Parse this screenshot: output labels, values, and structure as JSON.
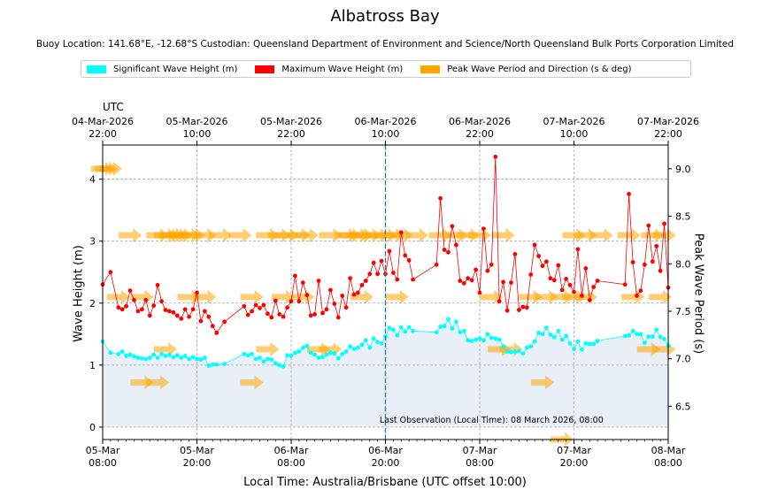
{
  "chart_data": {
    "type": "line",
    "title": "Albatross Bay",
    "subtitle": "Buoy Location: 141.68°E, -12.68°S     Custodian: Queensland Department of Environment and Science/North Queensland Bulk Ports Corporation Limited",
    "xlabel": "Local Time: Australia/Brisbane (UTC offset 10:00)",
    "ylabel_left": "Wave Height (m)",
    "ylabel_right": "Peak Wave Period (s)",
    "utc_axis_title": "UTC",
    "x_range_hours": [
      0,
      72
    ],
    "ylim_left": [
      -0.2,
      4.55
    ],
    "ylim_right": [
      6.15,
      9.25
    ],
    "left_ticks": [
      0,
      1,
      2,
      3,
      4
    ],
    "right_ticks": [
      "6.5",
      "7.0",
      "7.5",
      "8.0",
      "8.5",
      "9.0"
    ],
    "grid": true,
    "legend": [
      "Significant Wave Height (m)",
      "Maximum Wave Height (m)",
      "Peak Wave Period and Direction (s & deg)"
    ],
    "colors": {
      "hsig": "#00ffff",
      "hmax": "#ff0000",
      "period": "#ffa500",
      "fill": "#e8eff7",
      "now": "#1f77b4"
    },
    "bottom_ticks": [
      {
        "h": 0,
        "date": "05-Mar",
        "time": "08:00"
      },
      {
        "h": 12,
        "date": "05-Mar",
        "time": "20:00"
      },
      {
        "h": 24,
        "date": "06-Mar",
        "time": "08:00"
      },
      {
        "h": 36,
        "date": "06-Mar",
        "time": "20:00"
      },
      {
        "h": 48,
        "date": "07-Mar",
        "time": "08:00"
      },
      {
        "h": 60,
        "date": "07-Mar",
        "time": "20:00"
      },
      {
        "h": 72,
        "date": "08-Mar",
        "time": "08:00"
      }
    ],
    "top_ticks": [
      {
        "h": 0,
        "date": "04-Mar-2026",
        "time": "22:00"
      },
      {
        "h": 12,
        "date": "05-Mar-2026",
        "time": "10:00"
      },
      {
        "h": 24,
        "date": "05-Mar-2026",
        "time": "22:00"
      },
      {
        "h": 36,
        "date": "06-Mar-2026",
        "time": "10:00"
      },
      {
        "h": 48,
        "date": "06-Mar-2026",
        "time": "22:00"
      },
      {
        "h": 60,
        "date": "07-Mar-2026",
        "time": "10:00"
      },
      {
        "h": 72,
        "date": "07-Mar-2026",
        "time": "22:00"
      }
    ],
    "now_line_hour": 36,
    "annotation": "Last Observation (Local Time): 08 March 2026, 08:00",
    "hsig": [
      [
        0,
        1.38
      ],
      [
        1,
        1.2
      ],
      [
        2,
        1.18
      ],
      [
        2.5,
        1.22
      ],
      [
        3,
        1.15
      ],
      [
        3.5,
        1.17
      ],
      [
        4,
        1.14
      ],
      [
        4.5,
        1.12
      ],
      [
        5,
        1.11
      ],
      [
        5.5,
        1.1
      ],
      [
        6,
        1.12
      ],
      [
        6.5,
        1.17
      ],
      [
        7,
        1.12
      ],
      [
        7.5,
        1.18
      ],
      [
        8,
        1.15
      ],
      [
        8.5,
        1.17
      ],
      [
        9,
        1.13
      ],
      [
        9.5,
        1.16
      ],
      [
        10,
        1.12
      ],
      [
        10.5,
        1.15
      ],
      [
        11,
        1.1
      ],
      [
        11.5,
        1.13
      ],
      [
        12,
        1.1
      ],
      [
        12.5,
        1.09
      ],
      [
        13,
        1.12
      ],
      [
        13.5,
        0.99
      ],
      [
        14,
        1.01
      ],
      [
        14.5,
        1.01
      ],
      [
        15.5,
        1.02
      ],
      [
        18,
        1.18
      ],
      [
        18.5,
        1.16
      ],
      [
        19,
        1.18
      ],
      [
        19.5,
        1.1
      ],
      [
        20,
        1.12
      ],
      [
        20.5,
        1.06
      ],
      [
        21,
        1.1
      ],
      [
        21.5,
        1.09
      ],
      [
        22,
        1.03
      ],
      [
        22.5,
        1.0
      ],
      [
        23,
        0.98
      ],
      [
        23.5,
        1.16
      ],
      [
        24,
        1.15
      ],
      [
        24.5,
        1.2
      ],
      [
        25,
        1.22
      ],
      [
        25.5,
        1.28
      ],
      [
        26,
        1.31
      ],
      [
        26.5,
        1.2
      ],
      [
        27,
        1.17
      ],
      [
        27.5,
        1.12
      ],
      [
        28,
        1.13
      ],
      [
        28.5,
        1.17
      ],
      [
        29,
        1.2
      ],
      [
        29.5,
        1.19
      ],
      [
        30,
        1.11
      ],
      [
        30.5,
        1.18
      ],
      [
        31,
        1.22
      ],
      [
        31.5,
        1.3
      ],
      [
        32,
        1.26
      ],
      [
        32.5,
        1.28
      ],
      [
        33,
        1.33
      ],
      [
        33.5,
        1.4
      ],
      [
        34,
        1.28
      ],
      [
        34.5,
        1.43
      ],
      [
        35,
        1.37
      ],
      [
        35.5,
        1.35
      ],
      [
        36,
        1.46
      ],
      [
        36.5,
        1.6
      ],
      [
        37,
        1.57
      ],
      [
        37.5,
        1.48
      ],
      [
        38,
        1.61
      ],
      [
        38.5,
        1.54
      ],
      [
        39,
        1.61
      ],
      [
        39.5,
        1.55
      ],
      [
        42.5,
        1.53
      ],
      [
        43,
        1.62
      ],
      [
        43.5,
        1.63
      ],
      [
        44,
        1.74
      ],
      [
        44.5,
        1.59
      ],
      [
        45,
        1.7
      ],
      [
        45.5,
        1.53
      ],
      [
        46,
        1.55
      ],
      [
        46.5,
        1.4
      ],
      [
        47,
        1.39
      ],
      [
        47.5,
        1.41
      ],
      [
        48,
        1.43
      ],
      [
        48.5,
        1.4
      ],
      [
        49,
        1.5
      ],
      [
        49.5,
        1.44
      ],
      [
        50,
        1.43
      ],
      [
        50.5,
        1.41
      ],
      [
        51,
        1.3
      ],
      [
        51.5,
        1.22
      ],
      [
        52,
        1.21
      ],
      [
        52.5,
        1.22
      ],
      [
        53,
        1.23
      ],
      [
        53.5,
        1.19
      ],
      [
        54,
        1.28
      ],
      [
        54.5,
        1.3
      ],
      [
        55,
        1.38
      ],
      [
        55.5,
        1.52
      ],
      [
        56,
        1.5
      ],
      [
        56.5,
        1.6
      ],
      [
        57,
        1.49
      ],
      [
        57.5,
        1.45
      ],
      [
        58,
        1.55
      ],
      [
        58.5,
        1.41
      ],
      [
        59,
        1.47
      ],
      [
        59.5,
        1.35
      ],
      [
        60,
        1.26
      ],
      [
        60.5,
        1.38
      ],
      [
        61,
        1.25
      ],
      [
        61.5,
        1.35
      ],
      [
        62,
        1.34
      ],
      [
        62.5,
        1.34
      ],
      [
        63,
        1.39
      ],
      [
        66.5,
        1.47
      ],
      [
        67,
        1.48
      ],
      [
        67.5,
        1.55
      ],
      [
        68,
        1.5
      ],
      [
        68.5,
        1.5
      ],
      [
        69,
        1.36
      ],
      [
        69.5,
        1.46
      ],
      [
        70,
        1.46
      ],
      [
        70.5,
        1.57
      ],
      [
        71,
        1.45
      ],
      [
        71.5,
        1.42
      ],
      [
        72,
        1.31
      ]
    ],
    "hmax": [
      [
        0,
        2.3
      ],
      [
        1,
        2.5
      ],
      [
        2,
        1.93
      ],
      [
        2.5,
        1.9
      ],
      [
        3,
        1.95
      ],
      [
        3.5,
        2.2
      ],
      [
        4,
        2.05
      ],
      [
        4.5,
        1.87
      ],
      [
        5,
        1.9
      ],
      [
        5.5,
        2.05
      ],
      [
        6,
        1.8
      ],
      [
        6.5,
        1.96
      ],
      [
        7,
        2.29
      ],
      [
        7.5,
        2.03
      ],
      [
        8,
        1.89
      ],
      [
        8.5,
        1.87
      ],
      [
        9,
        1.85
      ],
      [
        9.5,
        1.8
      ],
      [
        10,
        1.75
      ],
      [
        10.5,
        1.9
      ],
      [
        11,
        1.78
      ],
      [
        11.5,
        1.9
      ],
      [
        12,
        2.17
      ],
      [
        12.5,
        1.71
      ],
      [
        13,
        1.87
      ],
      [
        13.5,
        1.78
      ],
      [
        14,
        1.63
      ],
      [
        14.5,
        1.52
      ],
      [
        15.5,
        1.7
      ],
      [
        18,
        1.95
      ],
      [
        18.5,
        1.81
      ],
      [
        19,
        1.87
      ],
      [
        19.5,
        1.97
      ],
      [
        20,
        1.92
      ],
      [
        20.5,
        1.97
      ],
      [
        21,
        1.83
      ],
      [
        21.5,
        1.77
      ],
      [
        22,
        2.04
      ],
      [
        22.5,
        1.82
      ],
      [
        23,
        1.78
      ],
      [
        23.5,
        1.93
      ],
      [
        24,
        2.03
      ],
      [
        24.5,
        2.44
      ],
      [
        25,
        2.03
      ],
      [
        25.5,
        2.33
      ],
      [
        26,
        2.13
      ],
      [
        26.5,
        1.8
      ],
      [
        27,
        1.82
      ],
      [
        27.5,
        2.36
      ],
      [
        28,
        1.84
      ],
      [
        28.5,
        1.9
      ],
      [
        29,
        2.21
      ],
      [
        29.5,
        1.99
      ],
      [
        30,
        1.77
      ],
      [
        30.5,
        2.12
      ],
      [
        31,
        1.93
      ],
      [
        31.5,
        2.4
      ],
      [
        32,
        2.14
      ],
      [
        32.5,
        2.17
      ],
      [
        33,
        2.29
      ],
      [
        33.5,
        2.36
      ],
      [
        34,
        2.47
      ],
      [
        34.5,
        2.65
      ],
      [
        35,
        2.47
      ],
      [
        35.5,
        2.68
      ],
      [
        36,
        2.47
      ],
      [
        36.5,
        2.84
      ],
      [
        37,
        2.49
      ],
      [
        37.5,
        2.38
      ],
      [
        38,
        3.14
      ],
      [
        38.5,
        2.77
      ],
      [
        39,
        2.69
      ],
      [
        39.5,
        2.38
      ],
      [
        42.5,
        2.62
      ],
      [
        43,
        3.69
      ],
      [
        43.5,
        2.86
      ],
      [
        44,
        2.82
      ],
      [
        44.5,
        3.24
      ],
      [
        45,
        2.94
      ],
      [
        45.5,
        2.36
      ],
      [
        46,
        2.32
      ],
      [
        46.5,
        2.4
      ],
      [
        47,
        2.37
      ],
      [
        47.5,
        2.54
      ],
      [
        48,
        2.17
      ],
      [
        48.5,
        3.2
      ],
      [
        49,
        2.52
      ],
      [
        49.5,
        2.62
      ],
      [
        50,
        4.36
      ],
      [
        50.5,
        2.03
      ],
      [
        51,
        2.34
      ],
      [
        51.5,
        1.88
      ],
      [
        52,
        2.33
      ],
      [
        52.5,
        2.79
      ],
      [
        53,
        1.89
      ],
      [
        53.5,
        1.94
      ],
      [
        54,
        1.93
      ],
      [
        54.5,
        2.46
      ],
      [
        55,
        2.94
      ],
      [
        55.5,
        2.76
      ],
      [
        56,
        2.6
      ],
      [
        56.5,
        2.67
      ],
      [
        57,
        2.4
      ],
      [
        57.5,
        2.37
      ],
      [
        58,
        2.61
      ],
      [
        58.5,
        2.21
      ],
      [
        59,
        2.39
      ],
      [
        59.5,
        2.29
      ],
      [
        60,
        2.18
      ],
      [
        60.5,
        2.87
      ],
      [
        61,
        2.12
      ],
      [
        61.5,
        2.56
      ],
      [
        62,
        2.05
      ],
      [
        62.5,
        2.26
      ],
      [
        63,
        2.36
      ],
      [
        66.5,
        2.3
      ],
      [
        67,
        3.76
      ],
      [
        67.5,
        2.66
      ],
      [
        68,
        2.12
      ],
      [
        68.5,
        2.2
      ],
      [
        69,
        2.62
      ],
      [
        69.5,
        3.25
      ],
      [
        70,
        2.67
      ],
      [
        70.5,
        2.92
      ],
      [
        71,
        2.52
      ],
      [
        71.5,
        3.28
      ],
      [
        72,
        2.25
      ]
    ],
    "period_direction": [
      [
        0,
        9.0,
        0
      ],
      [
        0.5,
        9.0,
        0
      ],
      [
        1,
        9.0,
        0
      ],
      [
        3.5,
        8.3,
        0
      ],
      [
        7,
        8.3,
        0
      ],
      [
        8,
        8.3,
        0
      ],
      [
        8.5,
        8.3,
        0
      ],
      [
        9,
        8.3,
        0
      ],
      [
        9.5,
        8.3,
        0
      ],
      [
        10,
        8.3,
        0
      ],
      [
        11,
        8.3,
        0
      ],
      [
        11.5,
        8.3,
        0
      ],
      [
        13,
        8.3,
        0
      ],
      [
        15,
        8.3,
        0
      ],
      [
        17.5,
        8.3,
        0
      ],
      [
        21,
        8.3,
        0
      ],
      [
        22.5,
        8.3,
        0
      ],
      [
        23.5,
        8.3,
        0
      ],
      [
        25,
        8.3,
        0
      ],
      [
        26,
        8.3,
        0
      ],
      [
        29,
        8.3,
        0
      ],
      [
        31,
        8.3,
        0
      ],
      [
        31.5,
        8.3,
        0
      ],
      [
        32.5,
        8.3,
        0
      ],
      [
        33,
        8.3,
        0
      ],
      [
        34,
        8.3,
        0
      ],
      [
        35,
        8.3,
        0
      ],
      [
        36,
        8.3,
        0
      ],
      [
        37,
        8.3,
        0
      ],
      [
        38,
        8.3,
        0
      ],
      [
        40,
        8.3,
        0
      ],
      [
        43,
        8.3,
        0
      ],
      [
        45,
        8.3,
        0
      ],
      [
        46.5,
        8.3,
        0
      ],
      [
        48,
        8.3,
        0
      ],
      [
        51,
        8.3,
        0
      ],
      [
        60,
        8.3,
        0
      ],
      [
        61.5,
        8.3,
        0
      ],
      [
        63.5,
        8.3,
        0
      ],
      [
        67,
        8.3,
        0
      ],
      [
        70,
        8.3,
        0
      ],
      [
        71.5,
        8.3,
        0
      ],
      [
        2,
        7.65,
        0
      ],
      [
        5,
        7.65,
        0
      ],
      [
        11,
        7.65,
        0
      ],
      [
        13,
        7.65,
        0
      ],
      [
        19,
        7.65,
        0
      ],
      [
        23,
        7.65,
        0
      ],
      [
        25.5,
        7.65,
        0
      ],
      [
        33,
        7.65,
        0
      ],
      [
        37.5,
        7.65,
        0
      ],
      [
        49.5,
        7.65,
        0
      ],
      [
        54.5,
        7.65,
        0
      ],
      [
        56.5,
        7.65,
        0
      ],
      [
        58.5,
        7.65,
        0
      ],
      [
        60,
        7.65,
        0
      ],
      [
        61.5,
        7.65,
        0
      ],
      [
        67.5,
        7.65,
        0
      ],
      [
        71,
        7.65,
        0
      ],
      [
        8,
        7.1,
        0
      ],
      [
        21,
        7.1,
        0
      ],
      [
        27.5,
        7.1,
        0
      ],
      [
        29,
        7.1,
        0
      ],
      [
        50.5,
        7.1,
        0
      ],
      [
        52,
        7.1,
        0
      ],
      [
        69.5,
        7.1,
        0
      ],
      [
        71.5,
        7.1,
        0
      ],
      [
        5,
        6.75,
        0
      ],
      [
        7,
        6.75,
        0
      ],
      [
        19,
        6.75,
        0
      ],
      [
        56,
        6.75,
        0
      ],
      [
        58.5,
        6.15,
        0
      ]
    ]
  }
}
